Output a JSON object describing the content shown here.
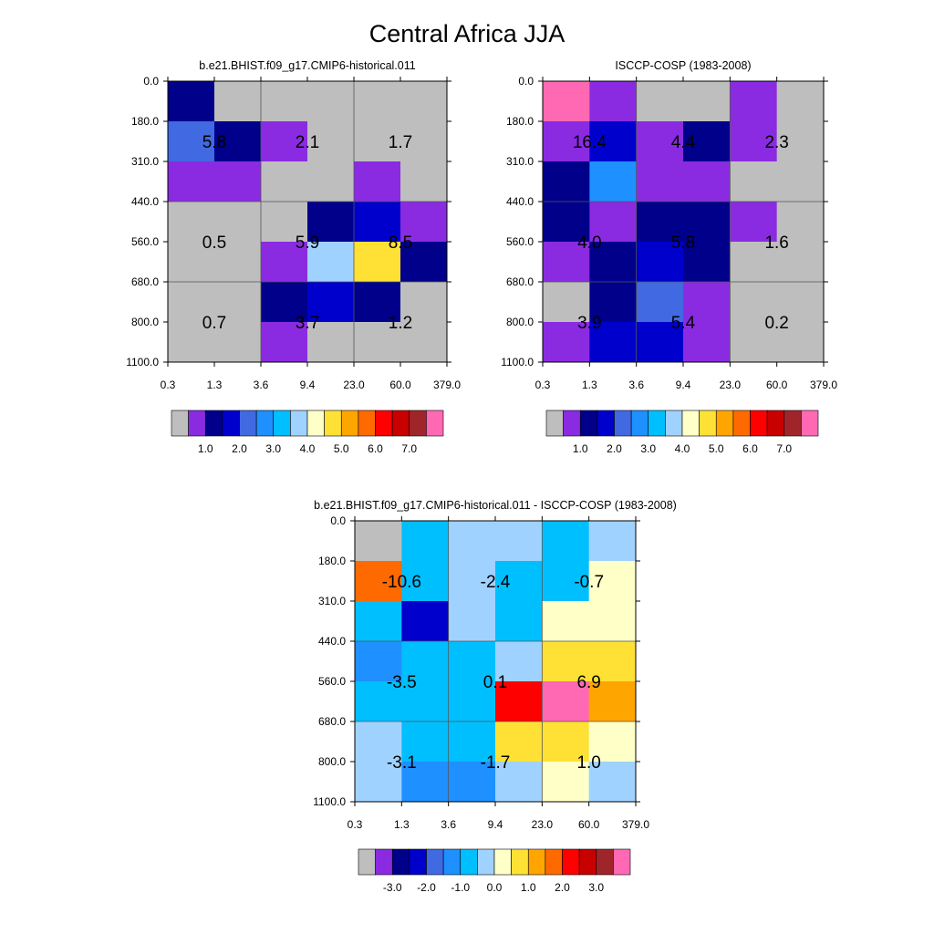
{
  "page": {
    "title": "Central Africa JJA"
  },
  "colors": {
    "abs_palette": [
      "#bebebe",
      "#8a2be2",
      "#00008b",
      "#0000cd",
      "#4169e1",
      "#1e90ff",
      "#00bfff",
      "#a0d2ff",
      "#ffffc8",
      "#ffe135",
      "#ffa500",
      "#ff6a00",
      "#ff0000",
      "#c80000",
      "#a0252a",
      "#ff69b4"
    ],
    "diff_palette": [
      "#bebebe",
      "#8a2be2",
      "#00008b",
      "#0000cd",
      "#4169e1",
      "#1e90ff",
      "#00bfff",
      "#a0d2ff",
      "#ffffc8",
      "#ffe135",
      "#ffa500",
      "#ff6a00",
      "#ff0000",
      "#c80000",
      "#a0252a",
      "#ff69b4"
    ]
  },
  "chart_data": [
    {
      "type": "heatmap",
      "title": "b.e21.BHIST.f09_g17.CMIP6-historical.011",
      "xticks": [
        "0.3",
        "1.3",
        "3.6",
        "9.4",
        "23.0",
        "60.0",
        "379.0"
      ],
      "yticks": [
        "0.0",
        "180.0",
        "310.0",
        "440.0",
        "560.0",
        "680.0",
        "800.0",
        "1100.0"
      ],
      "cells": [
        [
          2,
          0,
          0,
          0,
          0,
          0
        ],
        [
          4,
          2,
          1,
          0,
          0,
          0
        ],
        [
          1,
          1,
          0,
          0,
          1,
          0
        ],
        [
          0,
          0,
          0,
          2,
          3,
          1
        ],
        [
          0,
          0,
          1,
          7,
          9,
          2
        ],
        [
          0,
          0,
          2,
          3,
          2,
          0
        ],
        [
          0,
          0,
          1,
          0,
          0,
          0
        ]
      ],
      "labels": [
        {
          "row": 0,
          "col": 0,
          "text": "5.8"
        },
        {
          "row": 0,
          "col": 1,
          "text": "2.1"
        },
        {
          "row": 0,
          "col": 2,
          "text": "1.7"
        },
        {
          "row": 1,
          "col": 0,
          "text": "0.5"
        },
        {
          "row": 1,
          "col": 1,
          "text": "5.9"
        },
        {
          "row": 1,
          "col": 2,
          "text": "8.5"
        },
        {
          "row": 2,
          "col": 0,
          "text": "0.7"
        },
        {
          "row": 2,
          "col": 1,
          "text": "3.7"
        },
        {
          "row": 2,
          "col": 2,
          "text": "1.2"
        }
      ],
      "colorbar_labels": [
        "1.0",
        "2.0",
        "3.0",
        "4.0",
        "5.0",
        "6.0",
        "7.0"
      ]
    },
    {
      "type": "heatmap",
      "title": "ISCCP-COSP (1983-2008)",
      "xticks": [
        "0.3",
        "1.3",
        "3.6",
        "9.4",
        "23.0",
        "60.0",
        "379.0"
      ],
      "yticks": [
        "0.0",
        "180.0",
        "310.0",
        "440.0",
        "560.0",
        "680.0",
        "800.0",
        "1100.0"
      ],
      "cells": [
        [
          15,
          1,
          0,
          0,
          1,
          0
        ],
        [
          1,
          3,
          1,
          2,
          1,
          0
        ],
        [
          2,
          5,
          1,
          1,
          0,
          0
        ],
        [
          2,
          1,
          2,
          2,
          1,
          0
        ],
        [
          1,
          2,
          3,
          2,
          0,
          0
        ],
        [
          0,
          2,
          4,
          1,
          0,
          0
        ],
        [
          1,
          3,
          3,
          1,
          0,
          0
        ]
      ],
      "labels": [
        {
          "row": 0,
          "col": 0,
          "text": "16.4"
        },
        {
          "row": 0,
          "col": 1,
          "text": "4.4"
        },
        {
          "row": 0,
          "col": 2,
          "text": "2.3"
        },
        {
          "row": 1,
          "col": 0,
          "text": "4.0"
        },
        {
          "row": 1,
          "col": 1,
          "text": "5.8"
        },
        {
          "row": 1,
          "col": 2,
          "text": "1.6"
        },
        {
          "row": 2,
          "col": 0,
          "text": "3.9"
        },
        {
          "row": 2,
          "col": 1,
          "text": "5.4"
        },
        {
          "row": 2,
          "col": 2,
          "text": "0.2"
        }
      ],
      "colorbar_labels": [
        "1.0",
        "2.0",
        "3.0",
        "4.0",
        "5.0",
        "6.0",
        "7.0"
      ]
    },
    {
      "type": "heatmap",
      "title": "b.e21.BHIST.f09_g17.CMIP6-historical.011 - ISCCP-COSP (1983-2008)",
      "xticks": [
        "0.3",
        "1.3",
        "3.6",
        "9.4",
        "23.0",
        "60.0",
        "379.0"
      ],
      "yticks": [
        "0.0",
        "180.0",
        "310.0",
        "440.0",
        "560.0",
        "680.0",
        "800.0",
        "1100.0"
      ],
      "cells": [
        [
          0,
          6,
          7,
          7,
          6,
          7
        ],
        [
          11,
          6,
          7,
          6,
          6,
          8
        ],
        [
          6,
          3,
          7,
          6,
          8,
          8
        ],
        [
          5,
          6,
          6,
          7,
          9,
          9
        ],
        [
          6,
          6,
          6,
          12,
          15,
          10
        ],
        [
          7,
          6,
          6,
          9,
          9,
          8
        ],
        [
          7,
          5,
          5,
          7,
          8,
          7
        ]
      ],
      "labels": [
        {
          "row": 0,
          "col": 0,
          "text": "-10.6"
        },
        {
          "row": 0,
          "col": 1,
          "text": "-2.4"
        },
        {
          "row": 0,
          "col": 2,
          "text": "-0.7"
        },
        {
          "row": 1,
          "col": 0,
          "text": "-3.5"
        },
        {
          "row": 1,
          "col": 1,
          "text": "0.1"
        },
        {
          "row": 1,
          "col": 2,
          "text": "6.9"
        },
        {
          "row": 2,
          "col": 0,
          "text": "-3.1"
        },
        {
          "row": 2,
          "col": 1,
          "text": "-1.7"
        },
        {
          "row": 2,
          "col": 2,
          "text": "1.0"
        }
      ],
      "colorbar_labels": [
        "-3.0",
        "-2.0",
        "-1.0",
        "0.0",
        "1.0",
        "2.0",
        "3.0"
      ]
    }
  ]
}
